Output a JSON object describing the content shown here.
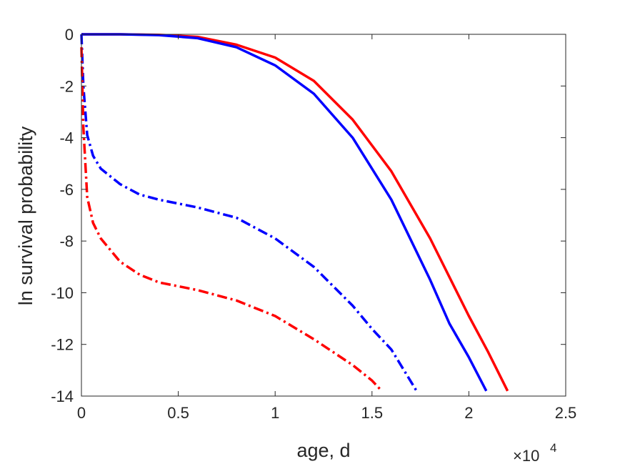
{
  "chart_data": {
    "type": "line",
    "title": "",
    "xlabel": "age, d",
    "ylabel": "ln survival probability",
    "x_exponent_label": "×10",
    "x_exponent_power": "4",
    "x_scale_factor": 10000,
    "xlim": [
      0,
      25000
    ],
    "ylim": [
      -14,
      0
    ],
    "grid": false,
    "legend": null,
    "x_ticks": [
      0,
      5000,
      10000,
      15000,
      20000,
      25000
    ],
    "x_tick_labels": [
      "0",
      "0.5",
      "1",
      "1.5",
      "2",
      "2.5"
    ],
    "y_ticks": [
      0,
      -2,
      -4,
      -6,
      -8,
      -10,
      -12,
      -14
    ],
    "y_tick_labels": [
      "0",
      "-2",
      "-4",
      "-6",
      "-8",
      "-10",
      "-12",
      "-14"
    ],
    "series": [
      {
        "color": "#ff0000",
        "style": "solid",
        "x": [
          0,
          2000,
          4000,
          6000,
          8000,
          10000,
          12000,
          14000,
          16000,
          18000,
          20000,
          21000,
          22000
        ],
        "y": [
          0,
          0,
          -0.02,
          -0.1,
          -0.4,
          -0.9,
          -1.8,
          -3.3,
          -5.3,
          -7.9,
          -10.9,
          -12.3,
          -13.8
        ]
      },
      {
        "color": "#0000ff",
        "style": "solid",
        "x": [
          0,
          2000,
          4000,
          6000,
          8000,
          10000,
          12000,
          14000,
          16000,
          18000,
          19000,
          20000,
          20900
        ],
        "y": [
          0,
          0,
          -0.03,
          -0.15,
          -0.5,
          -1.2,
          -2.3,
          -4.0,
          -6.4,
          -9.5,
          -11.2,
          -12.5,
          -13.8
        ]
      },
      {
        "color": "#0000ff",
        "style": "dashdot",
        "x": [
          0,
          100,
          300,
          600,
          1000,
          2000,
          3000,
          4000,
          6000,
          8000,
          10000,
          12000,
          14000,
          15000,
          16000,
          17300
        ],
        "y": [
          0,
          -2.0,
          -3.9,
          -4.7,
          -5.2,
          -5.8,
          -6.2,
          -6.4,
          -6.7,
          -7.1,
          -7.9,
          -9.0,
          -10.5,
          -11.4,
          -12.2,
          -13.8
        ]
      },
      {
        "color": "#ff0000",
        "style": "dashdot",
        "x": [
          0,
          100,
          300,
          600,
          1000,
          2000,
          3000,
          4000,
          6000,
          8000,
          10000,
          12000,
          13000,
          14000,
          15000,
          15500
        ],
        "y": [
          -0.5,
          -3.6,
          -6.3,
          -7.3,
          -7.9,
          -8.8,
          -9.3,
          -9.6,
          -9.9,
          -10.3,
          -10.9,
          -11.8,
          -12.3,
          -12.8,
          -13.4,
          -13.8
        ]
      }
    ]
  }
}
